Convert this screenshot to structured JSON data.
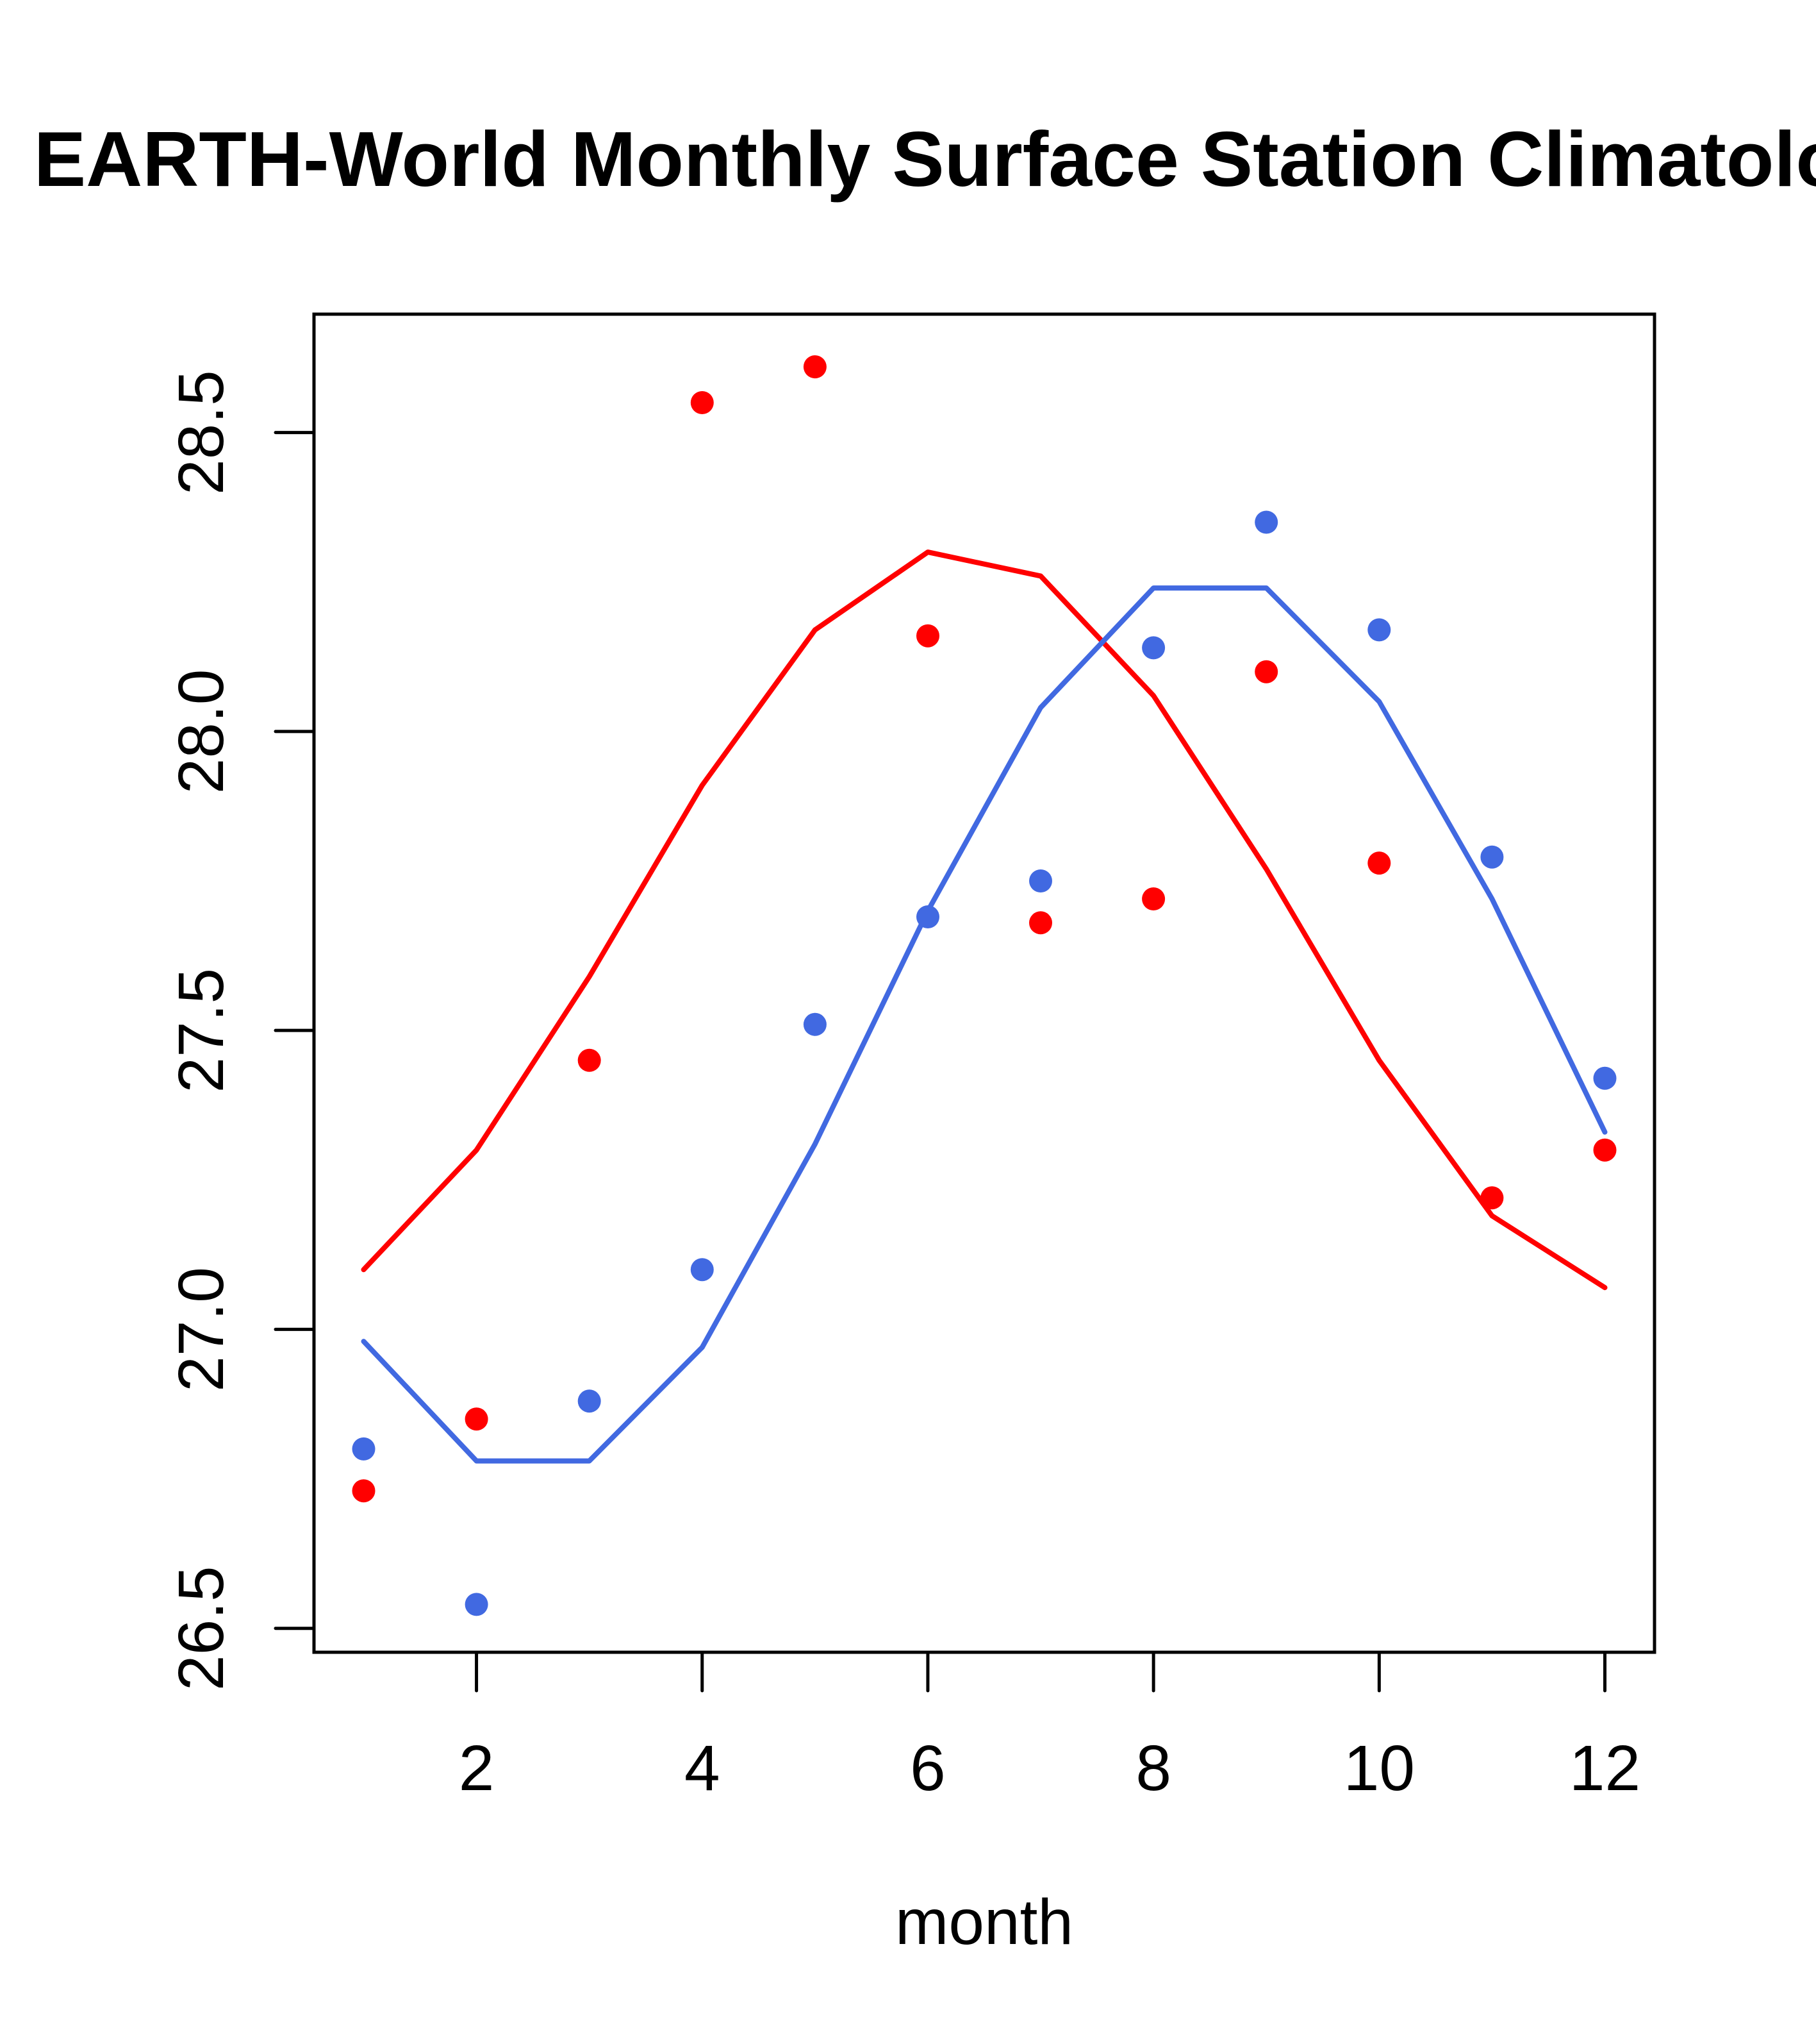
{
  "chart_data": {
    "type": "scatter",
    "title": "EARTH-World Monthly Surface Station Climatology",
    "xlabel": "month",
    "ylabel": "",
    "xlim": [
      0.56,
      12.44
    ],
    "ylim": [
      26.46,
      28.698
    ],
    "x_ticks": [
      2,
      4,
      6,
      8,
      10,
      12
    ],
    "x_tick_labels": [
      "2",
      "4",
      "6",
      "8",
      "10",
      "12"
    ],
    "y_ticks": [
      26.5,
      27.0,
      27.5,
      28.0,
      28.5
    ],
    "y_tick_labels": [
      "26.5",
      "27.0",
      "27.5",
      "28.0",
      "28.5"
    ],
    "grid": false,
    "legend": null,
    "x": [
      1,
      2,
      3,
      4,
      5,
      6,
      7,
      8,
      9,
      10,
      11,
      12
    ],
    "series": [
      {
        "name": "red points",
        "kind": "points",
        "color": "#ff0000",
        "values": [
          26.73,
          26.85,
          27.45,
          28.55,
          28.61,
          28.16,
          27.68,
          27.72,
          28.1,
          27.78,
          27.22,
          27.3
        ]
      },
      {
        "name": "blue points",
        "kind": "points",
        "color": "#4169e1",
        "values": [
          26.8,
          26.54,
          26.88,
          27.1,
          27.51,
          27.69,
          27.75,
          28.14,
          28.35,
          28.17,
          27.79,
          27.42
        ]
      },
      {
        "name": "red line",
        "kind": "line",
        "color": "#ff0000",
        "values": [
          27.1,
          27.3,
          27.59,
          27.91,
          28.17,
          28.3,
          28.26,
          28.06,
          27.77,
          27.45,
          27.19,
          27.07
        ]
      },
      {
        "name": "blue line",
        "kind": "line",
        "color": "#4169e1",
        "values": [
          26.98,
          26.78,
          26.78,
          26.97,
          27.31,
          27.7,
          28.04,
          28.24,
          28.24,
          28.05,
          27.72,
          27.33
        ]
      }
    ]
  }
}
